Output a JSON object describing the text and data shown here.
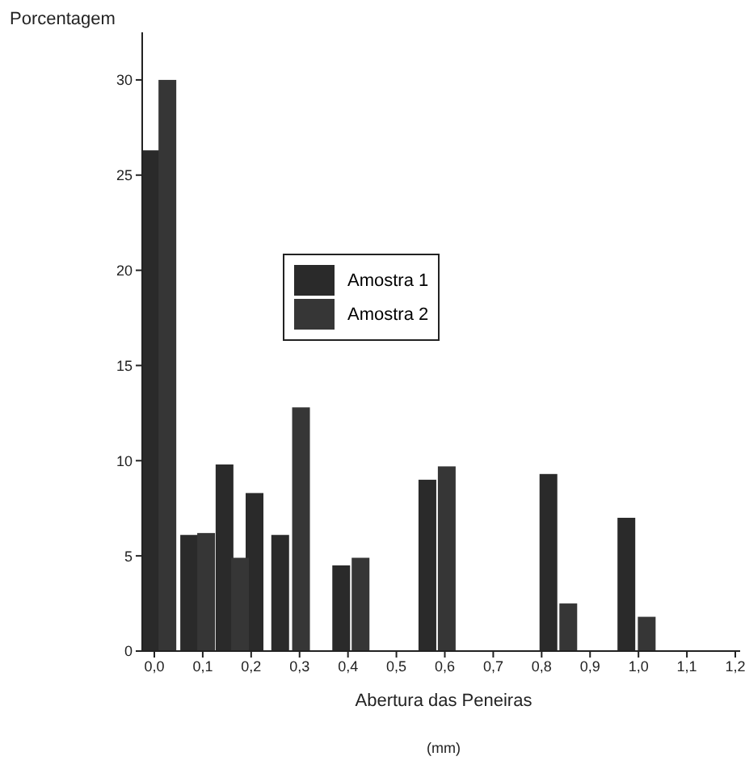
{
  "chart_data": {
    "type": "bar",
    "ylabel": "Porcentagem",
    "xlabel": "Abertura das Peneiras\n(mm)",
    "xlim": [
      -0.025,
      1.21
    ],
    "ylim": [
      0,
      32.5
    ],
    "xticks": [
      {
        "value": 0,
        "label": "0,0"
      },
      {
        "value": 0.1,
        "label": "0,1"
      },
      {
        "value": 0.2,
        "label": "0,2"
      },
      {
        "value": 0.3,
        "label": "0,3"
      },
      {
        "value": 0.4,
        "label": "0,4"
      },
      {
        "value": 0.5,
        "label": "0,5"
      },
      {
        "value": 0.6,
        "label": "0,6"
      },
      {
        "value": 0.7,
        "label": "0,7"
      },
      {
        "value": 0.8,
        "label": "0,8"
      },
      {
        "value": 0.9,
        "label": "0,9"
      },
      {
        "value": 1.0,
        "label": "1,0"
      },
      {
        "value": 1.1,
        "label": "1,1"
      },
      {
        "value": 1.2,
        "label": "1,2"
      }
    ],
    "yticks": [
      0,
      5,
      10,
      15,
      20,
      25,
      30
    ],
    "series": [
      {
        "name": "Amostra 1",
        "color": "#2a2a2a",
        "x": [
          -0.005,
          0.072,
          0.145,
          0.207,
          0.26,
          0.386,
          0.564,
          0.814,
          0.975
        ],
        "values": [
          26.3,
          6.1,
          9.8,
          8.3,
          6.1,
          4.5,
          9.0,
          9.3,
          7.0
        ]
      },
      {
        "name": "Amostra 2",
        "color": "#363636",
        "x": [
          0.027,
          0.107,
          0.177,
          0.303,
          0.426,
          0.604,
          0.855,
          1.017
        ],
        "values": [
          30.0,
          6.2,
          4.9,
          12.8,
          4.9,
          9.7,
          2.5,
          1.8
        ]
      }
    ],
    "legend": "top",
    "grid": false
  }
}
